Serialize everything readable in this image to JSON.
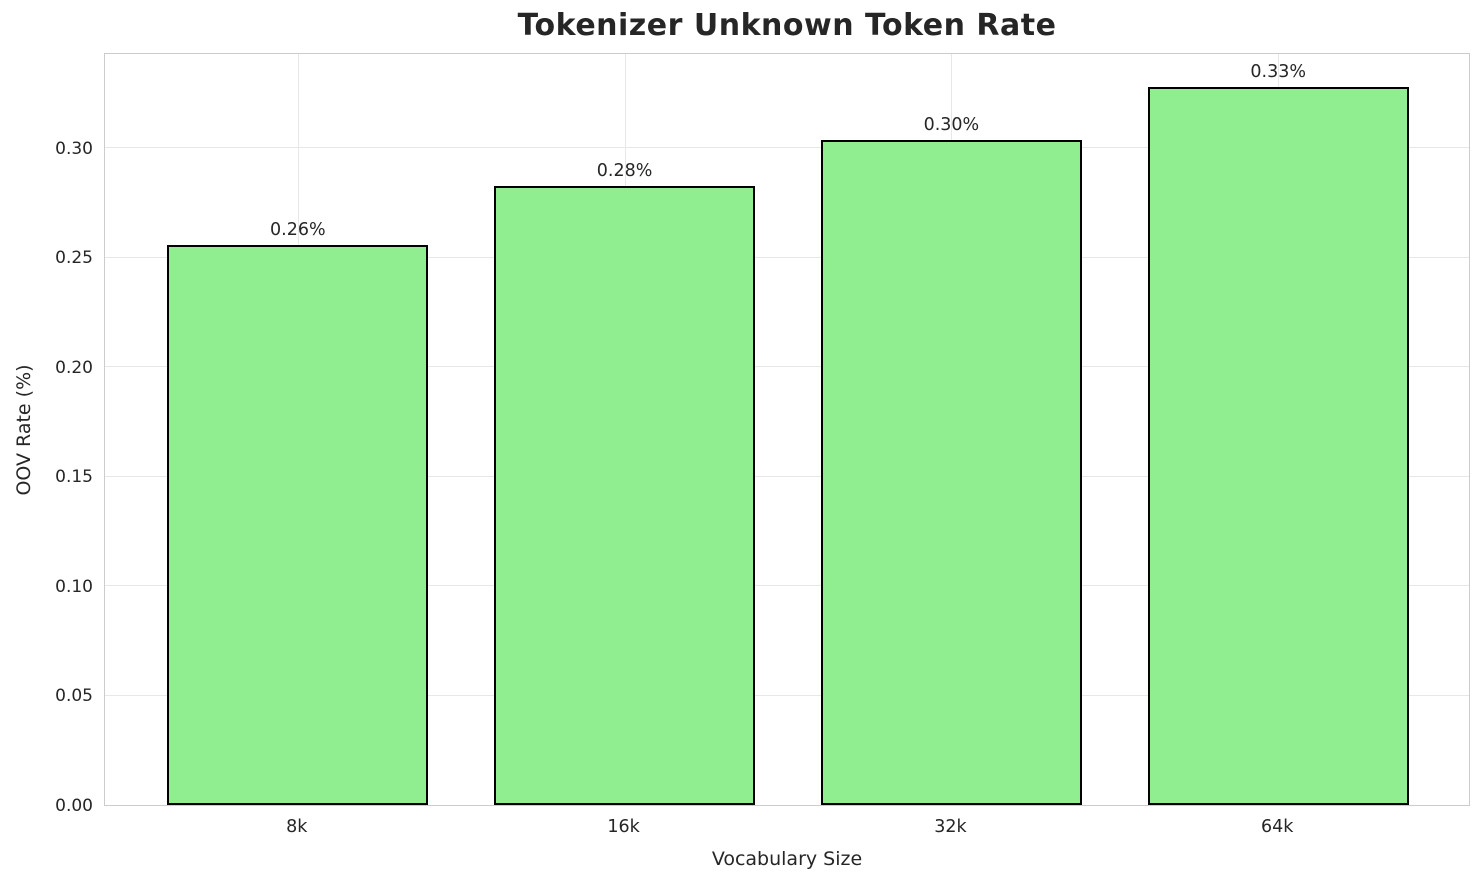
{
  "chart_data": {
    "type": "bar",
    "title": "Tokenizer Unknown Token Rate",
    "categories": [
      "8k",
      "16k",
      "32k",
      "64k"
    ],
    "values": [
      0.256,
      0.283,
      0.304,
      0.328
    ],
    "bar_labels": [
      "0.26%",
      "0.28%",
      "0.30%",
      "0.33%"
    ],
    "xlabel": "Vocabulary Size",
    "ylabel": "OOV Rate (%)",
    "ylim": [
      0,
      0.344
    ],
    "yticks": [
      {
        "value": 0.0,
        "label": "0.00"
      },
      {
        "value": 0.05,
        "label": "0.05"
      },
      {
        "value": 0.1,
        "label": "0.10"
      },
      {
        "value": 0.15,
        "label": "0.15"
      },
      {
        "value": 0.2,
        "label": "0.20"
      },
      {
        "value": 0.25,
        "label": "0.25"
      },
      {
        "value": 0.3,
        "label": "0.30"
      }
    ],
    "grid": true,
    "legend": null,
    "bar_color": "#90EE90",
    "bar_edge_color": "#000000",
    "grid_color": "#e7e7e7",
    "spine_color": "#cccccc",
    "text_color": "#262626"
  }
}
